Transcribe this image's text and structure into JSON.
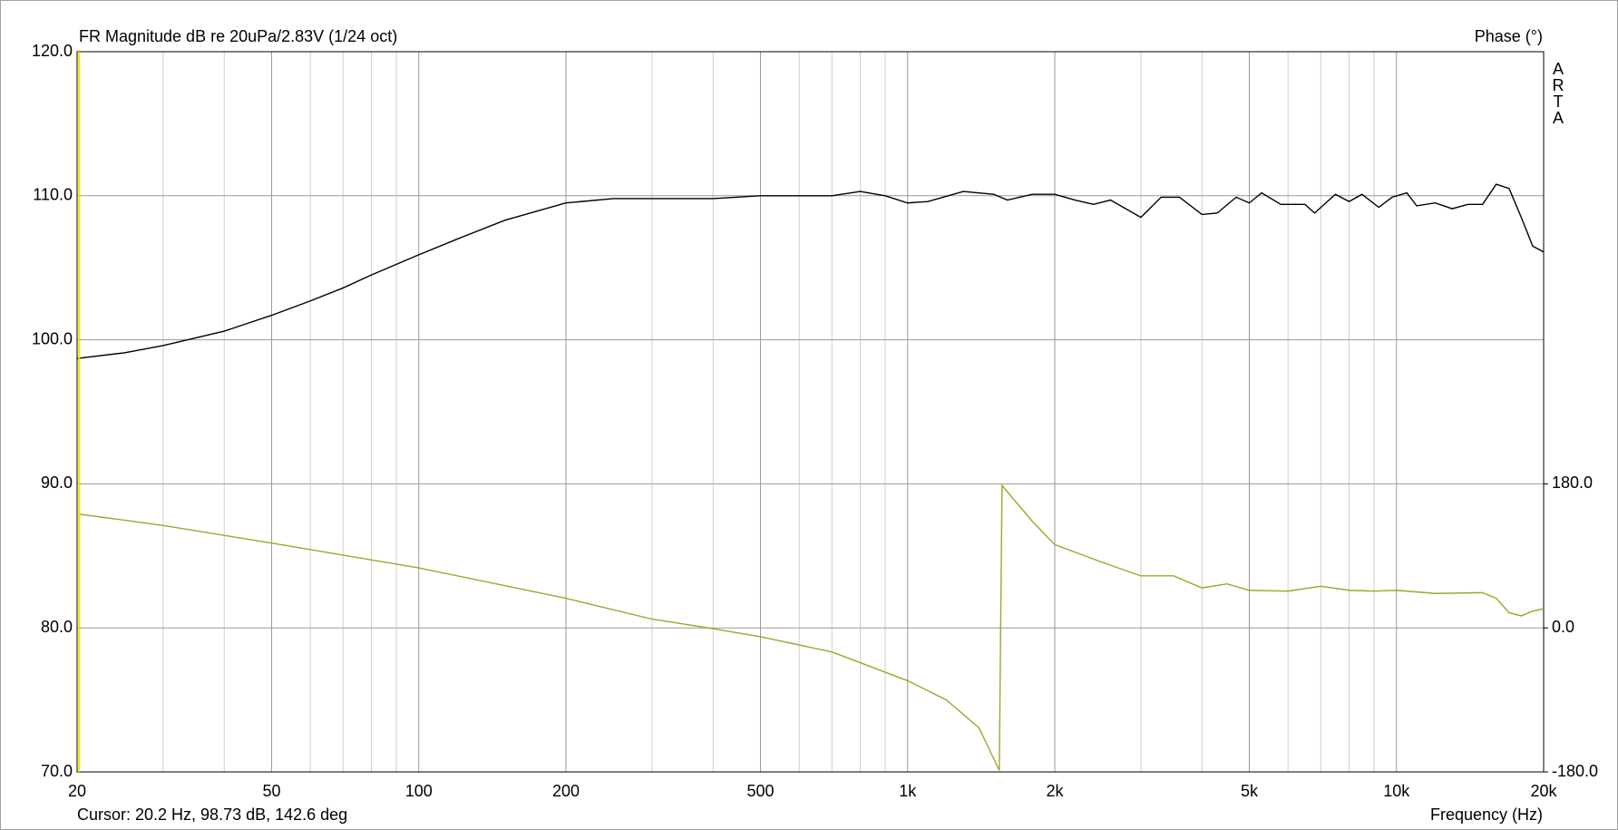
{
  "chart_data": {
    "type": "line",
    "title": "FR Magnitude dB re 20uPa/2.83V (1/24 oct)",
    "y2_label": "Phase (°)",
    "watermark": "ARTA",
    "x_label": "Frequency (Hz)",
    "cursor": {
      "text": "Cursor: 20.2 Hz, 98.73 dB, 142.6 deg",
      "x": 20.2,
      "color": "#e8e800"
    },
    "x_scale": "log",
    "xlim": [
      20,
      20000
    ],
    "xticks": [
      20,
      50,
      100,
      200,
      500,
      {
        "value": 1000,
        "label": "1k"
      },
      {
        "value": 2000,
        "label": "2k"
      },
      {
        "value": 5000,
        "label": "5k"
      },
      {
        "value": 10000,
        "label": "10k"
      },
      {
        "value": 20000,
        "label": "20k"
      }
    ],
    "x_minor_grid": [
      30,
      40,
      60,
      70,
      80,
      90,
      300,
      400,
      600,
      700,
      800,
      900,
      3000,
      4000,
      6000,
      7000,
      8000,
      9000
    ],
    "ylim": [
      70,
      120
    ],
    "yticks": [
      {
        "value": 70,
        "label": "70.0"
      },
      {
        "value": 80,
        "label": "80.0"
      },
      {
        "value": 90,
        "label": "90.0"
      },
      {
        "value": 100,
        "label": "100.0"
      },
      {
        "value": 110,
        "label": "110.0"
      },
      {
        "value": 120,
        "label": "120.0"
      }
    ],
    "y2lim": [
      -180,
      720
    ],
    "y2ticks": [
      {
        "value": -180,
        "label": "-180.0"
      },
      {
        "value": 0,
        "label": "0.0"
      },
      {
        "value": 180,
        "label": "180.0"
      }
    ],
    "grid": true,
    "series": [
      {
        "color": "#000000",
        "x": [
          20,
          25,
          30,
          40,
          50,
          60,
          70,
          80,
          100,
          120,
          150,
          200,
          250,
          300,
          400,
          500,
          600,
          700,
          800,
          900,
          1000,
          1100,
          1300,
          1500,
          1600,
          1800,
          2000,
          2200,
          2400,
          2600,
          3000,
          3300,
          3600,
          4000,
          4300,
          4700,
          5000,
          5300,
          5800,
          6500,
          6800,
          7500,
          8000,
          8500,
          9200,
          9800,
          10500,
          11000,
          12000,
          13000,
          14000,
          15000,
          16000,
          17000,
          18000,
          19000,
          20000
        ],
        "values": [
          98.7,
          99.1,
          99.6,
          100.6,
          101.7,
          102.7,
          103.6,
          104.5,
          105.9,
          107.0,
          108.3,
          109.5,
          109.8,
          109.8,
          109.8,
          110.0,
          110.0,
          110.0,
          110.3,
          110.0,
          109.5,
          109.6,
          110.3,
          110.1,
          109.7,
          110.1,
          110.1,
          109.7,
          109.4,
          109.7,
          108.5,
          109.9,
          109.9,
          108.7,
          108.8,
          109.9,
          109.5,
          110.2,
          109.4,
          109.4,
          108.8,
          110.1,
          109.6,
          110.1,
          109.2,
          109.9,
          110.2,
          109.3,
          109.5,
          109.1,
          109.4,
          109.4,
          110.8,
          110.5,
          108.5,
          106.5,
          106.1
        ]
      },
      {
        "color": "#a3a32a",
        "axis": "y2",
        "x": [
          20,
          30,
          50,
          100,
          200,
          300,
          400,
          500,
          700,
          1000,
          1200,
          1400,
          1540,
          1560,
          1800,
          2000,
          2500,
          3000,
          3500,
          4000,
          4500,
          5000,
          6000,
          7000,
          8000,
          9000,
          10000,
          12000,
          15000,
          16000,
          17000,
          18000,
          19000,
          20000
        ],
        "values": [
          142.6,
          128,
          106,
          75,
          37,
          11,
          -1,
          -11,
          -30,
          -66,
          -90,
          -125,
          -178,
          178,
          133,
          104,
          82,
          65,
          65,
          50,
          55,
          47,
          46,
          52,
          47,
          46,
          47,
          43,
          44,
          37,
          19,
          15,
          21,
          24
        ]
      }
    ]
  }
}
